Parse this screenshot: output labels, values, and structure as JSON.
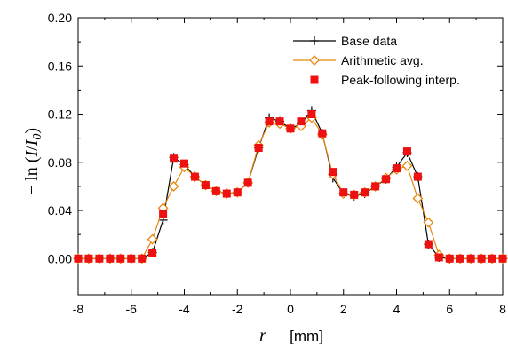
{
  "chart_data": {
    "type": "line",
    "title": "",
    "xlabel_var": "r",
    "xlabel_unit": "[mm]",
    "ylabel_prefix": "− ln (",
    "ylabel_var": "I",
    "ylabel_sep": "/",
    "ylabel_var2": "I",
    "ylabel_sub": "0",
    "ylabel_suffix": ")",
    "xlim": [
      -8,
      8
    ],
    "ylim": [
      -0.03,
      0.2
    ],
    "xticks": [
      -8,
      -6,
      -4,
      -2,
      0,
      2,
      4,
      6,
      8
    ],
    "yticks": [
      0.0,
      0.04,
      0.08,
      0.12,
      0.16,
      0.2
    ],
    "ytick_labels": [
      "0.00",
      "0.04",
      "0.08",
      "0.12",
      "0.16",
      "0.20"
    ],
    "legend_position": "top-right",
    "series": [
      {
        "name": "Base data",
        "color": "#000000",
        "marker": "plus",
        "points": [
          [
            -8.0,
            0.0
          ],
          [
            -7.6,
            0.0
          ],
          [
            -7.2,
            0.0
          ],
          [
            -6.8,
            0.0
          ],
          [
            -6.4,
            0.0
          ],
          [
            -6.0,
            0.0
          ],
          [
            -5.6,
            0.0
          ],
          [
            -5.2,
            0.005
          ],
          [
            -4.8,
            0.032
          ],
          [
            -4.4,
            0.084
          ],
          [
            -4.0,
            0.078
          ],
          [
            -3.6,
            0.068
          ],
          [
            -3.2,
            0.061
          ],
          [
            -2.8,
            0.056
          ],
          [
            -2.4,
            0.054
          ],
          [
            -2.0,
            0.055
          ],
          [
            -1.6,
            0.063
          ],
          [
            -1.2,
            0.092
          ],
          [
            -0.8,
            0.117
          ],
          [
            -0.4,
            0.114
          ],
          [
            0.0,
            0.108
          ],
          [
            0.4,
            0.112
          ],
          [
            0.8,
            0.123
          ],
          [
            1.2,
            0.104
          ],
          [
            1.6,
            0.067
          ],
          [
            2.0,
            0.054
          ],
          [
            2.4,
            0.052
          ],
          [
            2.8,
            0.054
          ],
          [
            3.2,
            0.06
          ],
          [
            3.6,
            0.066
          ],
          [
            4.0,
            0.076
          ],
          [
            4.4,
            0.088
          ],
          [
            4.8,
            0.068
          ],
          [
            5.2,
            0.012
          ],
          [
            5.6,
            0.001
          ],
          [
            6.0,
            0.0
          ],
          [
            6.4,
            0.0
          ],
          [
            6.8,
            0.0
          ],
          [
            7.2,
            0.0
          ],
          [
            7.6,
            0.0
          ],
          [
            8.0,
            0.0
          ]
        ]
      },
      {
        "name": "Arithmetic avg.",
        "color": "#e8860c",
        "marker": "diamond",
        "points": [
          [
            -8.0,
            0.0
          ],
          [
            -7.6,
            0.0
          ],
          [
            -7.2,
            0.0
          ],
          [
            -6.8,
            0.0
          ],
          [
            -6.4,
            0.0
          ],
          [
            -6.0,
            0.0
          ],
          [
            -5.6,
            0.0
          ],
          [
            -5.2,
            0.016
          ],
          [
            -4.8,
            0.042
          ],
          [
            -4.4,
            0.06
          ],
          [
            -4.0,
            0.076
          ],
          [
            -3.6,
            0.068
          ],
          [
            -3.2,
            0.061
          ],
          [
            -2.8,
            0.056
          ],
          [
            -2.4,
            0.054
          ],
          [
            -2.0,
            0.055
          ],
          [
            -1.6,
            0.063
          ],
          [
            -1.2,
            0.094
          ],
          [
            -0.8,
            0.113
          ],
          [
            -0.4,
            0.112
          ],
          [
            0.0,
            0.108
          ],
          [
            0.4,
            0.11
          ],
          [
            0.8,
            0.117
          ],
          [
            1.2,
            0.103
          ],
          [
            1.6,
            0.07
          ],
          [
            2.0,
            0.054
          ],
          [
            2.4,
            0.053
          ],
          [
            2.8,
            0.055
          ],
          [
            3.2,
            0.06
          ],
          [
            3.6,
            0.067
          ],
          [
            4.0,
            0.074
          ],
          [
            4.4,
            0.077
          ],
          [
            4.8,
            0.05
          ],
          [
            5.2,
            0.03
          ],
          [
            5.6,
            0.003
          ],
          [
            6.0,
            0.0
          ],
          [
            6.4,
            0.0
          ],
          [
            6.8,
            0.0
          ],
          [
            7.2,
            0.0
          ],
          [
            7.6,
            0.0
          ],
          [
            8.0,
            0.0
          ]
        ]
      },
      {
        "name": "Peak-following interp.",
        "color": "#ee1111",
        "marker": "square",
        "points": [
          [
            -8.0,
            0.0
          ],
          [
            -7.6,
            0.0
          ],
          [
            -7.2,
            0.0
          ],
          [
            -6.8,
            0.0
          ],
          [
            -6.4,
            0.0
          ],
          [
            -6.0,
            0.0
          ],
          [
            -5.6,
            0.0
          ],
          [
            -5.2,
            0.005
          ],
          [
            -4.8,
            0.037
          ],
          [
            -4.4,
            0.083
          ],
          [
            -4.0,
            0.079
          ],
          [
            -3.6,
            0.068
          ],
          [
            -3.2,
            0.061
          ],
          [
            -2.8,
            0.056
          ],
          [
            -2.4,
            0.054
          ],
          [
            -2.0,
            0.055
          ],
          [
            -1.6,
            0.063
          ],
          [
            -1.2,
            0.092
          ],
          [
            -0.8,
            0.114
          ],
          [
            -0.4,
            0.114
          ],
          [
            0.0,
            0.108
          ],
          [
            0.4,
            0.114
          ],
          [
            0.8,
            0.12
          ],
          [
            1.2,
            0.104
          ],
          [
            1.6,
            0.072
          ],
          [
            2.0,
            0.055
          ],
          [
            2.4,
            0.053
          ],
          [
            2.8,
            0.055
          ],
          [
            3.2,
            0.06
          ],
          [
            3.6,
            0.066
          ],
          [
            4.0,
            0.075
          ],
          [
            4.4,
            0.089
          ],
          [
            4.8,
            0.068
          ],
          [
            5.2,
            0.012
          ],
          [
            5.6,
            0.001
          ],
          [
            6.0,
            0.0
          ],
          [
            6.4,
            0.0
          ],
          [
            6.8,
            0.0
          ],
          [
            7.2,
            0.0
          ],
          [
            7.6,
            0.0
          ],
          [
            8.0,
            0.0
          ]
        ]
      }
    ]
  }
}
